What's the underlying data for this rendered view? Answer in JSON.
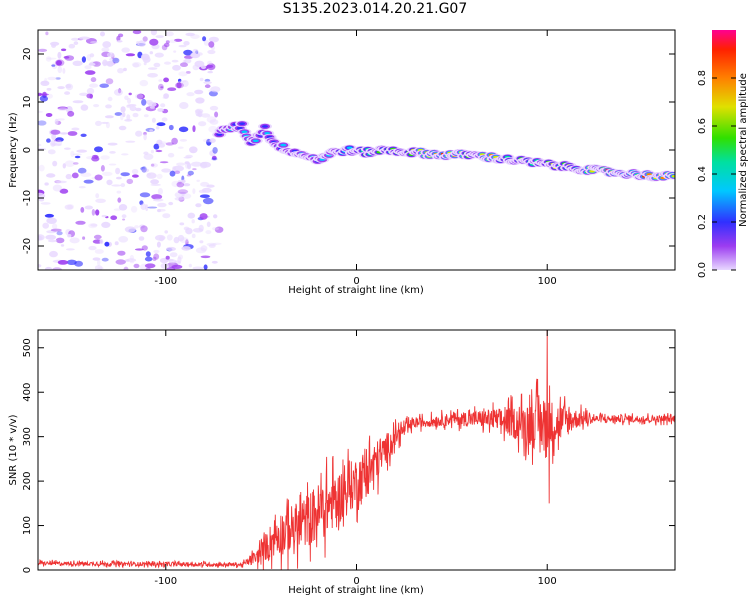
{
  "title": "S135.2023.014.20.21.G07",
  "chart_data": [
    {
      "type": "heatmap",
      "title": "S135.2023.014.20.21.G07",
      "xlabel": "Height of straight line (km)",
      "ylabel": "Frequency (Hz)",
      "xlim": [
        -167,
        167
      ],
      "ylim": [
        -25,
        25
      ],
      "xticks": [
        -100,
        0,
        100
      ],
      "yticks": [
        -20,
        -10,
        0,
        10,
        20
      ],
      "colorbar": {
        "label": "Normalized spectral amplitude",
        "ticks": [
          0.0,
          0.2,
          0.4,
          0.6,
          0.8
        ],
        "range": [
          0,
          1
        ]
      },
      "noise_region_x": [
        -167,
        -72
      ],
      "ridge": [
        {
          "x": -72,
          "f": 3.5,
          "a": 0.3
        },
        {
          "x": -68,
          "f": 4.5,
          "a": 0.35
        },
        {
          "x": -60,
          "f": 5.0,
          "a": 0.3
        },
        {
          "x": -55,
          "f": 1.5,
          "a": 0.35
        },
        {
          "x": -48,
          "f": 4.5,
          "a": 0.3
        },
        {
          "x": -42,
          "f": 1.0,
          "a": 0.3
        },
        {
          "x": -35,
          "f": 0.0,
          "a": 0.35
        },
        {
          "x": -28,
          "f": -1.0,
          "a": 0.3
        },
        {
          "x": -20,
          "f": -2.0,
          "a": 0.3
        },
        {
          "x": -12,
          "f": -0.5,
          "a": 0.35
        },
        {
          "x": -5,
          "f": 0.0,
          "a": 0.45
        },
        {
          "x": 5,
          "f": -0.5,
          "a": 0.55
        },
        {
          "x": 15,
          "f": 0.0,
          "a": 0.55
        },
        {
          "x": 30,
          "f": -0.5,
          "a": 0.6
        },
        {
          "x": 45,
          "f": -1.0,
          "a": 0.9
        },
        {
          "x": 60,
          "f": -1.0,
          "a": 0.6
        },
        {
          "x": 70,
          "f": -1.5,
          "a": 0.7
        },
        {
          "x": 80,
          "f": -2.0,
          "a": 0.6
        },
        {
          "x": 90,
          "f": -2.5,
          "a": 0.55
        },
        {
          "x": 100,
          "f": -3.0,
          "a": 0.6
        },
        {
          "x": 110,
          "f": -3.5,
          "a": 0.6
        },
        {
          "x": 120,
          "f": -4.0,
          "a": 0.7
        },
        {
          "x": 130,
          "f": -4.5,
          "a": 0.95
        },
        {
          "x": 145,
          "f": -5.0,
          "a": 0.7
        },
        {
          "x": 160,
          "f": -5.5,
          "a": 0.9
        },
        {
          "x": 167,
          "f": -5.5,
          "a": 0.7
        }
      ]
    },
    {
      "type": "line",
      "xlabel": "Height of straight line (km)",
      "ylabel": "SNR (10 * v/v)",
      "xlim": [
        -167,
        167
      ],
      "ylim": [
        0,
        540
      ],
      "xticks": [
        -100,
        0,
        100
      ],
      "yticks": [
        0,
        100,
        200,
        300,
        400,
        500
      ],
      "color": "#ee3333",
      "series": [
        {
          "name": "SNR",
          "envelope": [
            {
              "x": -167,
              "mean": 15,
              "amp": 8
            },
            {
              "x": -60,
              "mean": 12,
              "amp": 8
            },
            {
              "x": -52,
              "mean": 30,
              "amp": 30
            },
            {
              "x": -42,
              "mean": 80,
              "amp": 90
            },
            {
              "x": -30,
              "mean": 100,
              "amp": 100
            },
            {
              "x": -20,
              "mean": 130,
              "amp": 120
            },
            {
              "x": -10,
              "mean": 160,
              "amp": 110
            },
            {
              "x": 0,
              "mean": 200,
              "amp": 100
            },
            {
              "x": 10,
              "mean": 240,
              "amp": 90
            },
            {
              "x": 20,
              "mean": 300,
              "amp": 40
            },
            {
              "x": 30,
              "mean": 330,
              "amp": 20
            },
            {
              "x": 50,
              "mean": 340,
              "amp": 25
            },
            {
              "x": 70,
              "mean": 340,
              "amp": 40
            },
            {
              "x": 85,
              "mean": 330,
              "amp": 70
            },
            {
              "x": 95,
              "mean": 330,
              "amp": 110
            },
            {
              "x": 105,
              "mean": 330,
              "amp": 90
            },
            {
              "x": 115,
              "mean": 340,
              "amp": 40
            },
            {
              "x": 125,
              "mean": 340,
              "amp": 15
            },
            {
              "x": 167,
              "mean": 340,
              "amp": 15
            }
          ],
          "peaks": [
            {
              "x": 100,
              "y": 540
            },
            {
              "x": 101,
              "y": 150
            }
          ]
        }
      ]
    }
  ]
}
